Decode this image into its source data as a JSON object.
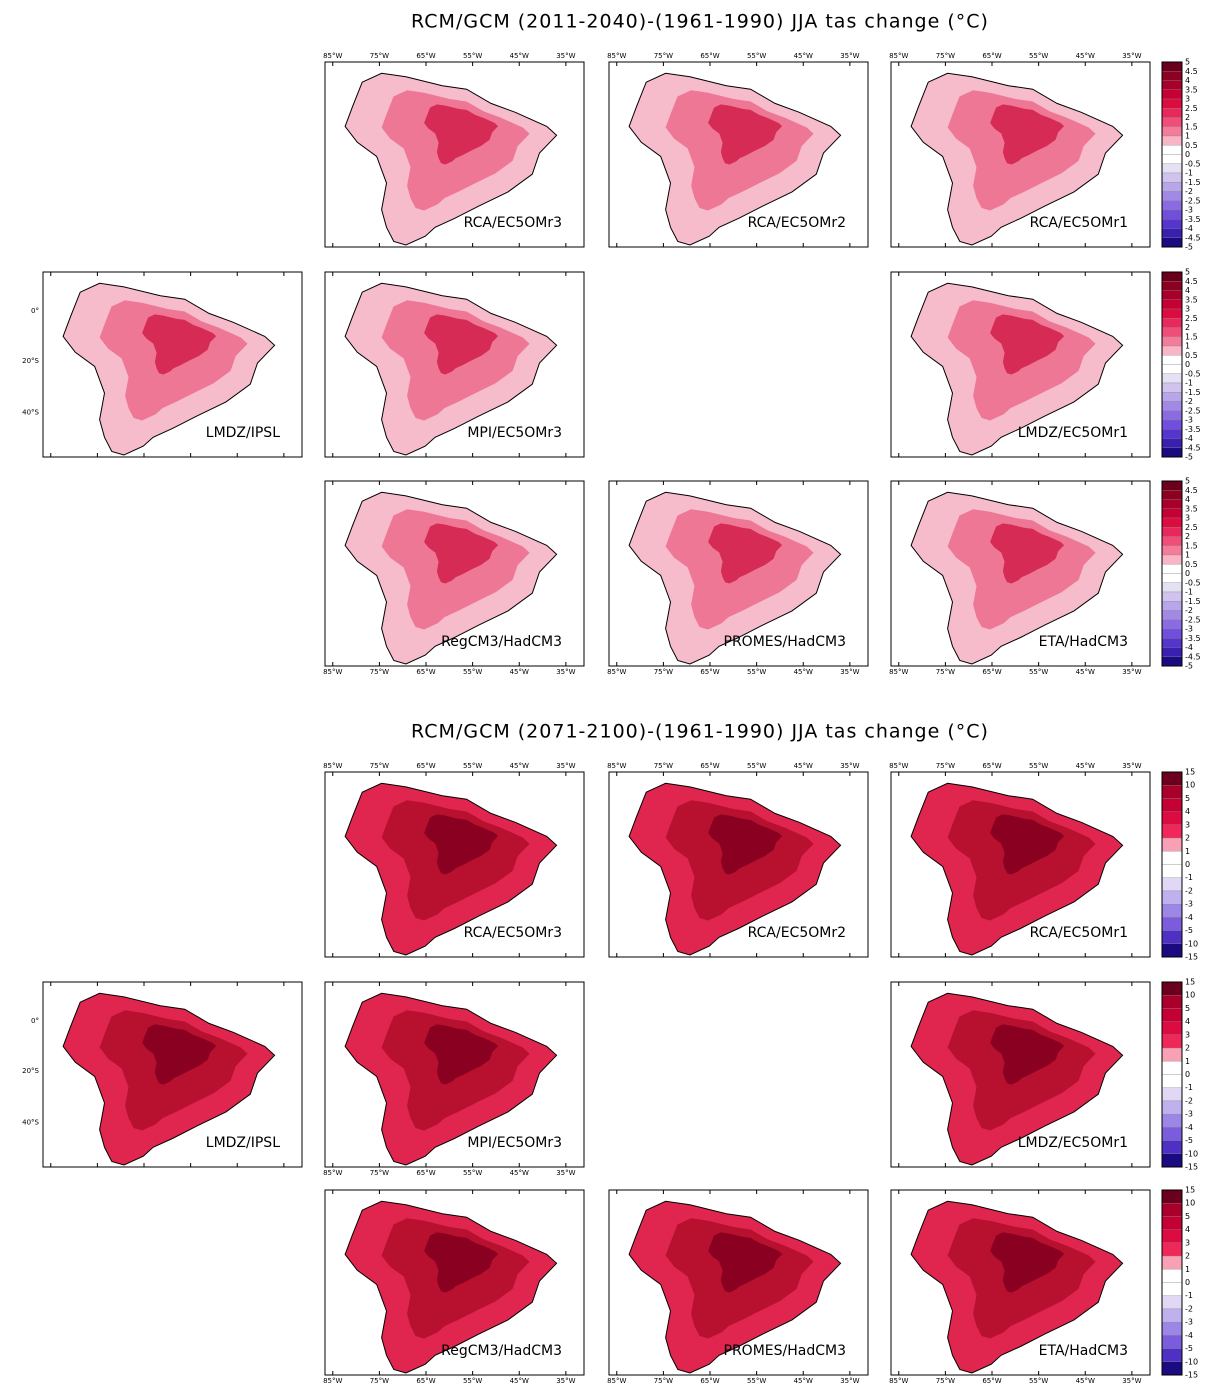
{
  "lon_labels": [
    "85°W",
    "75°W",
    "65°W",
    "55°W",
    "45°W",
    "35°W"
  ],
  "lat_labels": [
    "0°",
    "20°S",
    "40°S"
  ],
  "figures": [
    {
      "title": "RCM/GCM (2011-2040)-(1961-1990) JJA tas change (°C)",
      "rows": [
        [
          "RCA/EC5OMr3",
          "RCA/EC5OMr2",
          "RCA/EC5OMr1"
        ],
        [
          "LMDZ/IPSL",
          "MPI/EC5OMr3",
          "LMDZ/EC5OMr1"
        ],
        [
          "RegCM3/HadCM3",
          "PROMES/HadCM3",
          "ETA/HadCM3"
        ]
      ],
      "colorbar": {
        "labels": [
          5,
          4.5,
          4,
          3.5,
          3,
          2.5,
          2,
          1.5,
          1,
          0.5,
          0,
          -0.5,
          -1,
          -1.5,
          -2,
          -2.5,
          -3,
          -3.5,
          -4,
          -4.5,
          -5
        ],
        "colors": [
          "#6b001e",
          "#8c0022",
          "#a8002a",
          "#c40034",
          "#dc0c40",
          "#e8285a",
          "#f04d78",
          "#f47c9a",
          "#f9b4c6",
          "#ffffff",
          "#ffffff",
          "#e6e0f5",
          "#d0c4ef",
          "#b9a6ea",
          "#a189e6",
          "#8a6be2",
          "#6f4fdc",
          "#5535cc",
          "#3a20b0",
          "#1a0c80"
        ]
      }
    },
    {
      "title": "RCM/GCM (2071-2100)-(1961-1990) JJA tas change (°C)",
      "rows": [
        [
          "RCA/EC5OMr3",
          "RCA/EC5OMr2",
          "RCA/EC5OMr1"
        ],
        [
          "LMDZ/IPSL",
          "MPI/EC5OMr3",
          "LMDZ/EC5OMr1"
        ],
        [
          "RegCM3/HadCM3",
          "PROMES/HadCM3",
          "ETA/HadCM3"
        ]
      ],
      "colorbar": {
        "labels": [
          15,
          10,
          5,
          4,
          3,
          2,
          1,
          0,
          -1,
          -2,
          -3,
          -4,
          -5,
          -10,
          -15
        ],
        "colors": [
          "#6b001e",
          "#a8002a",
          "#c40034",
          "#dc0c40",
          "#f0285a",
          "#f9a0b4",
          "#ffffff",
          "#ffffff",
          "#e0d8f5",
          "#c0b0ee",
          "#9c86e6",
          "#7a5cdc",
          "#4e30c4",
          "#1a0c80"
        ]
      }
    }
  ]
}
